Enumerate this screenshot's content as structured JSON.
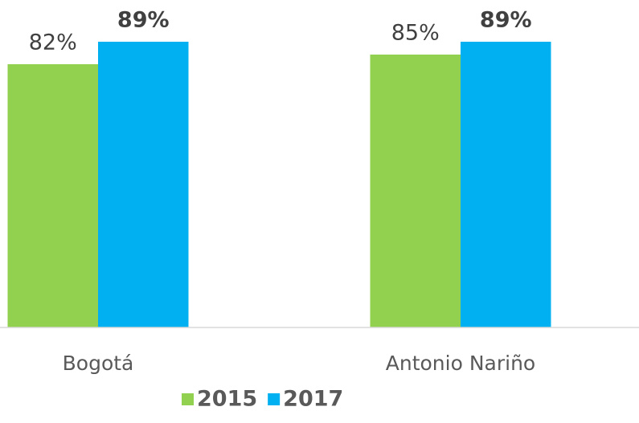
{
  "chart_data": {
    "type": "bar",
    "categories": [
      "Bogotá",
      "Antonio Nariño"
    ],
    "series": [
      {
        "name": "2015",
        "color": "#92d050",
        "values": [
          82,
          85
        ],
        "value_labels": [
          "82%",
          "85%"
        ]
      },
      {
        "name": "2017",
        "color": "#00b0f0",
        "values": [
          89,
          89
        ],
        "value_labels": [
          "89%",
          "89%"
        ]
      }
    ],
    "ylim": [
      0,
      100
    ],
    "legend": "bottom"
  }
}
